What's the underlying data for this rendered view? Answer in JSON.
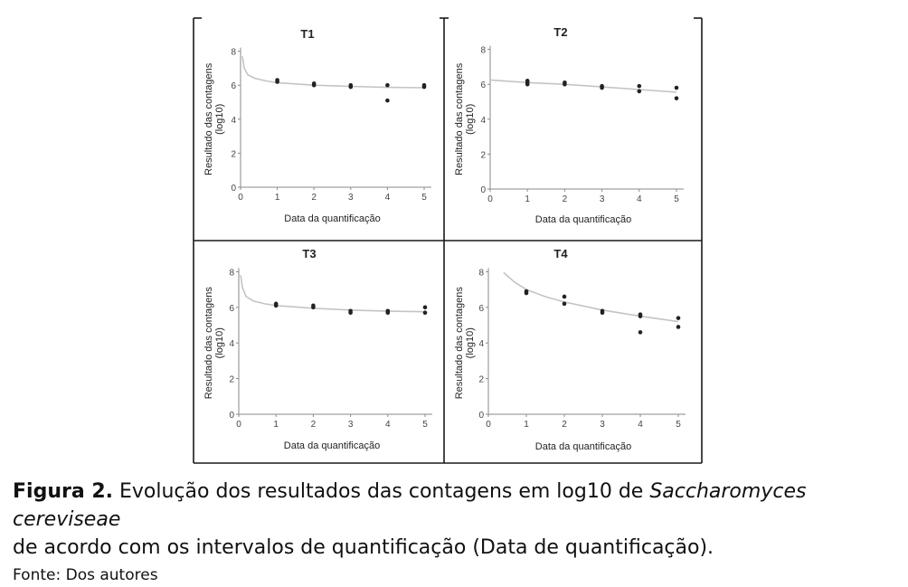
{
  "chart_data": [
    {
      "type": "scatter",
      "title": "T1",
      "xlabel": "Data da quantificação",
      "ylabel": "Resultado das contagens (log10)",
      "xlim": [
        0,
        5
      ],
      "ylim": [
        0,
        8
      ],
      "xticks": [
        0,
        1,
        2,
        3,
        4,
        5
      ],
      "yticks": [
        0,
        2,
        4,
        6,
        8
      ],
      "points": [
        {
          "x": 1,
          "y": 6.2
        },
        {
          "x": 1,
          "y": 6.3
        },
        {
          "x": 2,
          "y": 6.1
        },
        {
          "x": 2,
          "y": 6.0
        },
        {
          "x": 3,
          "y": 5.9
        },
        {
          "x": 3,
          "y": 6.0
        },
        {
          "x": 4,
          "y": 6.0
        },
        {
          "x": 4,
          "y": 5.1
        },
        {
          "x": 5,
          "y": 5.9
        },
        {
          "x": 5,
          "y": 6.0
        }
      ],
      "trend": [
        {
          "x": 0.05,
          "y": 7.7
        },
        {
          "x": 0.1,
          "y": 7.0
        },
        {
          "x": 0.2,
          "y": 6.6
        },
        {
          "x": 0.4,
          "y": 6.4
        },
        {
          "x": 0.7,
          "y": 6.25
        },
        {
          "x": 1,
          "y": 6.15
        },
        {
          "x": 2,
          "y": 6.0
        },
        {
          "x": 3,
          "y": 5.93
        },
        {
          "x": 4,
          "y": 5.87
        },
        {
          "x": 5,
          "y": 5.85
        }
      ]
    },
    {
      "type": "scatter",
      "title": "T2",
      "xlabel": "Data da quantificação",
      "ylabel": "Resultado das contagens (log10)",
      "xlim": [
        0,
        5
      ],
      "ylim": [
        0,
        8
      ],
      "xticks": [
        0,
        1,
        2,
        3,
        4,
        5
      ],
      "yticks": [
        0,
        2,
        4,
        6,
        8
      ],
      "points": [
        {
          "x": 1,
          "y": 6.2
        },
        {
          "x": 1,
          "y": 6.0
        },
        {
          "x": 1,
          "y": 6.1
        },
        {
          "x": 2,
          "y": 6.1
        },
        {
          "x": 2,
          "y": 6.0
        },
        {
          "x": 3,
          "y": 5.9
        },
        {
          "x": 3,
          "y": 5.8
        },
        {
          "x": 4,
          "y": 5.9
        },
        {
          "x": 4,
          "y": 5.6
        },
        {
          "x": 5,
          "y": 5.8
        },
        {
          "x": 5,
          "y": 5.2
        }
      ],
      "trend": [
        {
          "x": 0,
          "y": 6.25
        },
        {
          "x": 1,
          "y": 6.1
        },
        {
          "x": 2,
          "y": 6.0
        },
        {
          "x": 3,
          "y": 5.85
        },
        {
          "x": 4,
          "y": 5.7
        },
        {
          "x": 5,
          "y": 5.55
        }
      ]
    },
    {
      "type": "scatter",
      "title": "T3",
      "xlabel": "Data da quantificação",
      "ylabel": "Resultado das contagens (log10)",
      "xlim": [
        0,
        5
      ],
      "ylim": [
        0,
        8
      ],
      "xticks": [
        0,
        1,
        2,
        3,
        4,
        5
      ],
      "yticks": [
        0,
        2,
        4,
        6,
        8
      ],
      "points": [
        {
          "x": 1,
          "y": 6.1
        },
        {
          "x": 1,
          "y": 6.2
        },
        {
          "x": 2,
          "y": 6.0
        },
        {
          "x": 2,
          "y": 6.1
        },
        {
          "x": 3,
          "y": 5.8
        },
        {
          "x": 3,
          "y": 5.7
        },
        {
          "x": 4,
          "y": 5.8
        },
        {
          "x": 4,
          "y": 5.7
        },
        {
          "x": 5,
          "y": 6.0
        },
        {
          "x": 5,
          "y": 5.7
        }
      ],
      "trend": [
        {
          "x": 0.05,
          "y": 7.8
        },
        {
          "x": 0.1,
          "y": 7.1
        },
        {
          "x": 0.2,
          "y": 6.6
        },
        {
          "x": 0.4,
          "y": 6.35
        },
        {
          "x": 0.7,
          "y": 6.2
        },
        {
          "x": 1,
          "y": 6.1
        },
        {
          "x": 2,
          "y": 5.95
        },
        {
          "x": 3,
          "y": 5.85
        },
        {
          "x": 4,
          "y": 5.78
        },
        {
          "x": 5,
          "y": 5.75
        }
      ]
    },
    {
      "type": "scatter",
      "title": "T4",
      "xlabel": "Data da quantificação",
      "ylabel": "Resultado das contagens (log10)",
      "xlim": [
        0,
        5
      ],
      "ylim": [
        0,
        8
      ],
      "xticks": [
        0,
        1,
        2,
        3,
        4,
        5
      ],
      "yticks": [
        0,
        2,
        4,
        6,
        8
      ],
      "points": [
        {
          "x": 1,
          "y": 6.9
        },
        {
          "x": 1,
          "y": 6.8
        },
        {
          "x": 2,
          "y": 6.6
        },
        {
          "x": 2,
          "y": 6.2
        },
        {
          "x": 3,
          "y": 5.8
        },
        {
          "x": 3,
          "y": 5.7
        },
        {
          "x": 4,
          "y": 5.6
        },
        {
          "x": 4,
          "y": 5.5
        },
        {
          "x": 4,
          "y": 4.6
        },
        {
          "x": 5,
          "y": 5.4
        },
        {
          "x": 5,
          "y": 4.9
        }
      ],
      "trend": [
        {
          "x": 0.4,
          "y": 7.95
        },
        {
          "x": 0.7,
          "y": 7.4
        },
        {
          "x": 1,
          "y": 7.0
        },
        {
          "x": 1.5,
          "y": 6.6
        },
        {
          "x": 2,
          "y": 6.3
        },
        {
          "x": 3,
          "y": 5.85
        },
        {
          "x": 4,
          "y": 5.5
        },
        {
          "x": 5,
          "y": 5.2
        }
      ]
    }
  ],
  "caption": {
    "label": "Figura 2.",
    "text_before": " Evolução dos resultados das contagens em log10 de ",
    "species": "Saccharomyces cereviseae",
    "text_after": "de acordo com os intervalos de quantificação (Data de quantificação).",
    "source": "Fonte: Dos autores"
  },
  "colors": {
    "frame": "#1a1a1a",
    "axis": "#8a8a8a",
    "trend": "#c4c4c4",
    "point": "#222222",
    "text": "#111111"
  }
}
